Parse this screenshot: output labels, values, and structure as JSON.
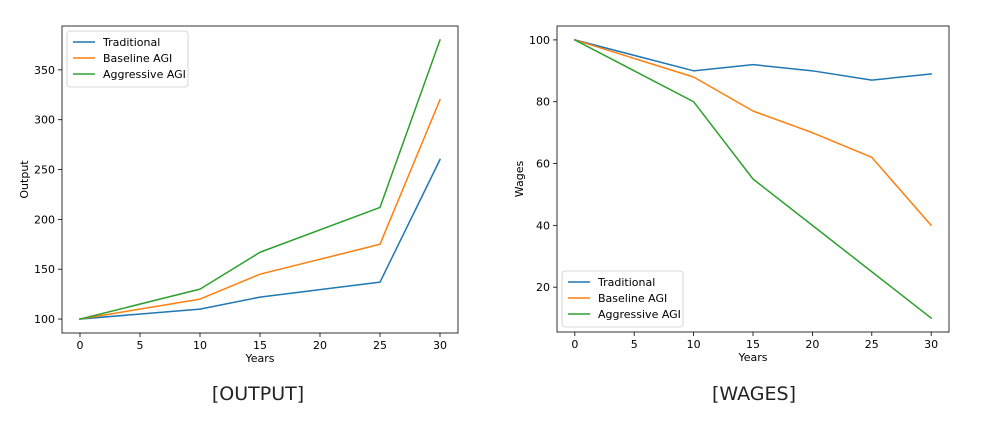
{
  "figure": {
    "captions": [
      "[OUTPUT]",
      "[WAGES]"
    ]
  },
  "chart_data": [
    {
      "type": "line",
      "title": "",
      "xlabel": "Years",
      "ylabel": "Output",
      "x": [
        0,
        10,
        15,
        25,
        30
      ],
      "xlim": [
        -1.5,
        31.5
      ],
      "ylim": [
        86,
        394
      ],
      "xticks": [
        0,
        5,
        10,
        15,
        20,
        25,
        30
      ],
      "yticks": [
        100,
        150,
        200,
        250,
        300,
        350
      ],
      "grid": false,
      "legend_position": "top-left",
      "series": [
        {
          "name": "Traditional",
          "color": "#1f77b4",
          "values": [
            100,
            110,
            122,
            137,
            260
          ]
        },
        {
          "name": "Baseline AGI",
          "color": "#ff7f0e",
          "values": [
            100,
            120,
            145,
            175,
            320
          ]
        },
        {
          "name": "Aggressive AGI",
          "color": "#2ca02c",
          "values": [
            100,
            130,
            167,
            212,
            380
          ]
        }
      ]
    },
    {
      "type": "line",
      "title": "",
      "xlabel": "Years",
      "ylabel": "Wages",
      "x": [
        0,
        10,
        15,
        20,
        25,
        30
      ],
      "xlim": [
        -1.5,
        31.5
      ],
      "ylim": [
        5.5,
        104.5
      ],
      "xticks": [
        0,
        5,
        10,
        15,
        20,
        25,
        30
      ],
      "yticks": [
        20,
        40,
        60,
        80,
        100
      ],
      "grid": false,
      "legend_position": "bottom-left",
      "series": [
        {
          "name": "Traditional",
          "color": "#1f77b4",
          "values": [
            100,
            90,
            92,
            90,
            87,
            89
          ]
        },
        {
          "name": "Baseline AGI",
          "color": "#ff7f0e",
          "values": [
            100,
            88,
            77,
            70,
            62,
            40
          ]
        },
        {
          "name": "Aggressive AGI",
          "color": "#2ca02c",
          "values": [
            100,
            80,
            55,
            40,
            25,
            10
          ]
        }
      ]
    }
  ]
}
